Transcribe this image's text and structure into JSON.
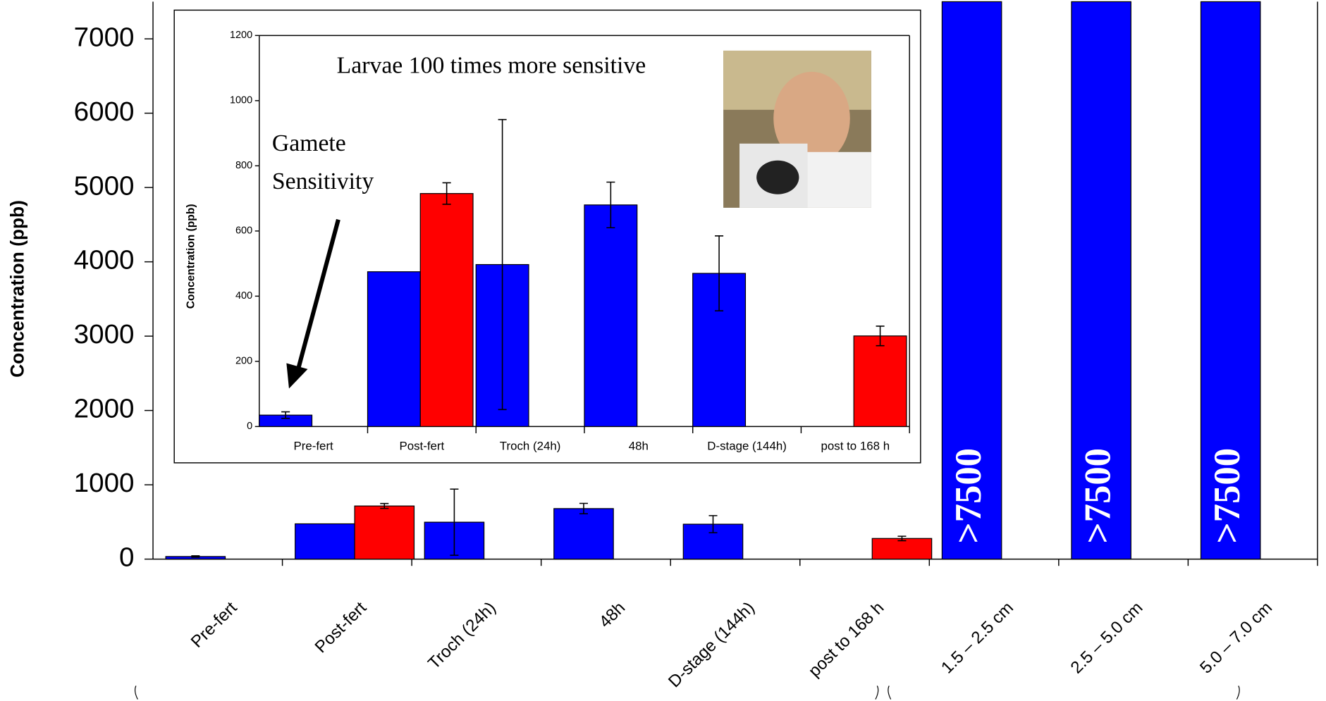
{
  "chart_data": [
    {
      "type": "bar",
      "y_label": "Concentration (ppb)",
      "categories": [
        "Pre-fert",
        "Post-fert",
        "Troch (24h)",
        "48h",
        "D-stage (144h)",
        "post to 168 h",
        "1.5 – 2.5 cm",
        "2.5 – 5.0 cm",
        "5.0 – 7.0 cm"
      ],
      "series": [
        {
          "color": "#0000ff",
          "values": [
            35,
            475,
            497,
            680,
            470,
            null,
            7500,
            7500,
            7500
          ],
          "errors": [
            10,
            null,
            445,
            70,
            115,
            null,
            null,
            null,
            null
          ],
          "value_labels": [
            null,
            null,
            null,
            null,
            null,
            null,
            ">7500",
            ">7500",
            ">7500"
          ]
        },
        {
          "color": "#ff0000",
          "values": [
            null,
            715,
            null,
            null,
            null,
            278,
            null,
            null,
            null
          ],
          "errors": [
            null,
            33,
            null,
            null,
            null,
            30,
            null,
            null,
            null
          ]
        }
      ],
      "ylim": [
        0,
        7500
      ],
      "yticks": [
        0,
        1000,
        2000,
        3000,
        4000,
        5000,
        6000,
        7000
      ],
      "grid": false
    },
    {
      "type": "bar",
      "title": "Larvae 100 times more sensitive",
      "annotation": [
        "Gamete",
        "Sensitivity"
      ],
      "y_label": "Concentration (ppb)",
      "categories": [
        "Pre-fert",
        "Post-fert",
        "Troch (24h)",
        "48h",
        "D-stage (144h)",
        "post to 168 h"
      ],
      "series": [
        {
          "color": "#0000ff",
          "values": [
            35,
            475,
            497,
            680,
            470,
            null
          ],
          "errors": [
            10,
            null,
            445,
            70,
            115,
            null
          ]
        },
        {
          "color": "#ff0000",
          "values": [
            null,
            715,
            null,
            null,
            null,
            278
          ],
          "errors": [
            null,
            33,
            null,
            null,
            null,
            30
          ]
        }
      ],
      "ylim": [
        0,
        1200
      ],
      "yticks": [
        0,
        200,
        400,
        600,
        800,
        1000,
        1200
      ],
      "grid": false
    }
  ]
}
